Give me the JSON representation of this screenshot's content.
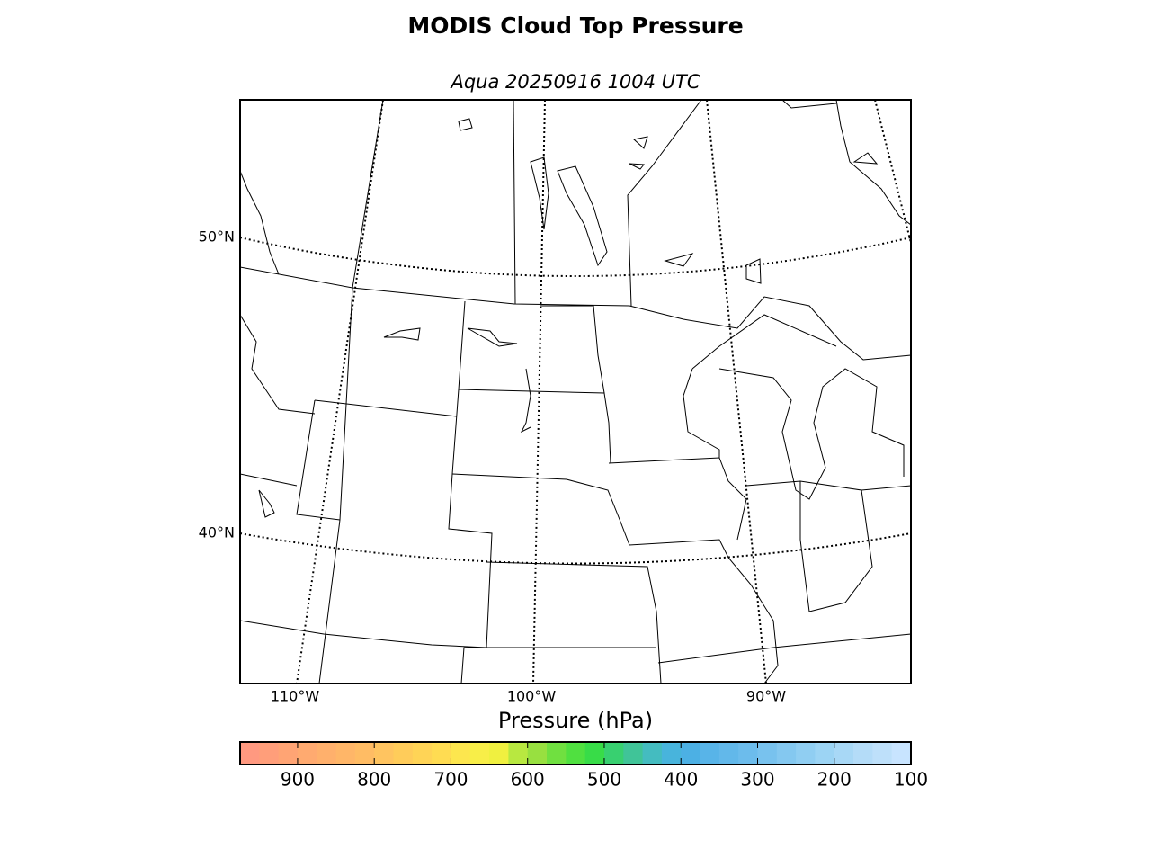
{
  "title": "MODIS Cloud Top Pressure",
  "subtitle": "Aqua 20250916 1004 UTC",
  "map": {
    "lat_labels": [
      "50°N",
      "40°N"
    ],
    "lon_labels": [
      "110°W",
      "100°W",
      "90°W"
    ]
  },
  "colorbar": {
    "label": "Pressure (hPa)",
    "lim": [
      975,
      100
    ],
    "ticks": [
      900,
      800,
      700,
      600,
      500,
      400,
      300,
      200,
      100
    ],
    "colors": [
      "#ff9980",
      "#ff9e7a",
      "#ffa474",
      "#ffaa70",
      "#ffb06c",
      "#ffb668",
      "#ffbc64",
      "#ffc460",
      "#ffcc5a",
      "#ffd456",
      "#ffdc52",
      "#fde64e",
      "#f8ee48",
      "#f0f040",
      "#b8e840",
      "#98e040",
      "#70e040",
      "#50e040",
      "#38dc48",
      "#38d070",
      "#40c498",
      "#44bcc0",
      "#48b4dc",
      "#4cb0e4",
      "#58b4e8",
      "#62b8ea",
      "#6cbcec",
      "#78c2ee",
      "#84c8f0",
      "#90cef2",
      "#9cd4f4",
      "#a8d8f6",
      "#b4dcf8",
      "#bee0fa",
      "#c8e4ff"
    ]
  }
}
